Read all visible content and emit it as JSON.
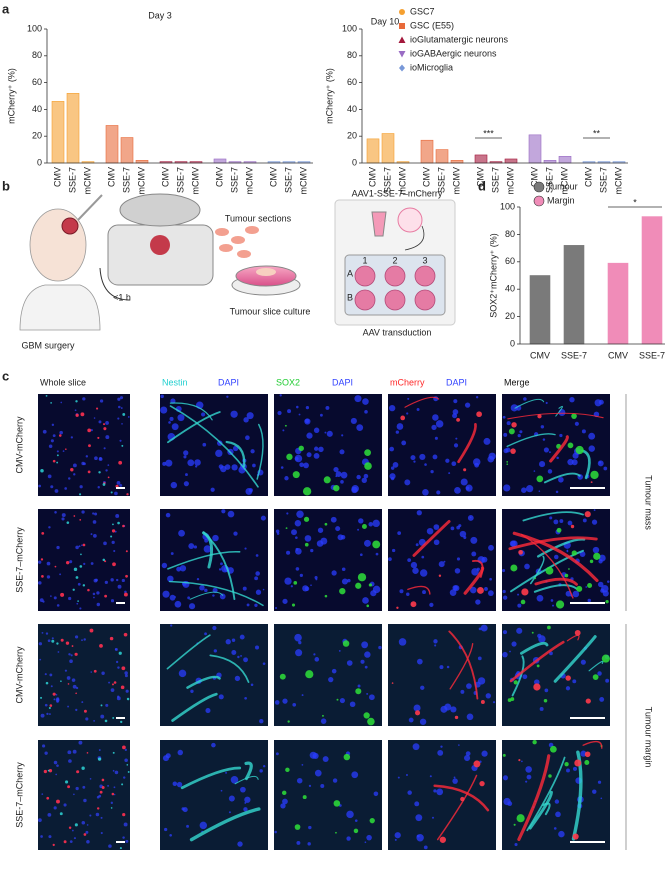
{
  "panel_labels": [
    "a",
    "b",
    "c",
    "d"
  ],
  "chart_data": [
    {
      "type": "bar",
      "title": "Day 3",
      "y_label": "mCherry⁺ (%)",
      "categories": [
        "CMV",
        "SSE-7",
        "mCMV"
      ],
      "series": [
        {
          "color": "#f5a030",
          "values": [
            46,
            52,
            1
          ]
        },
        {
          "color": "#e86a3a",
          "values": [
            28,
            19,
            2
          ]
        },
        {
          "color": "#a3183c",
          "values": [
            1,
            1,
            1
          ]
        },
        {
          "color": "#9a6cc4",
          "values": [
            3,
            1,
            1
          ]
        },
        {
          "color": "#7898d8",
          "values": [
            1,
            1,
            1
          ]
        }
      ],
      "ylim": [
        0,
        100
      ],
      "yticks": [
        0,
        20,
        40,
        60,
        80,
        100
      ]
    },
    {
      "type": "bar",
      "title": "Day 10",
      "y_label": "mCherry⁺ (%)",
      "categories": [
        "CMV",
        "SSE-7",
        "mCMV"
      ],
      "series": [
        {
          "name": "GSC7",
          "color": "#f5a030",
          "values": [
            18,
            22,
            1
          ]
        },
        {
          "name": "GSC (E55)",
          "color": "#e86a3a",
          "values": [
            17,
            10,
            2
          ]
        },
        {
          "name": "ioGlutamatergic neurons",
          "color": "#a3183c",
          "values": [
            6,
            1,
            3
          ]
        },
        {
          "name": "ioGABAergic neurons",
          "color": "#9a6cc4",
          "values": [
            21,
            2,
            5
          ]
        },
        {
          "name": "ioMicroglia",
          "color": "#7898d8",
          "values": [
            1,
            1,
            1
          ]
        }
      ],
      "annotations": [
        "***",
        "**"
      ],
      "ylim": [
        0,
        100
      ],
      "yticks": [
        0,
        20,
        40,
        60,
        80,
        100
      ]
    },
    {
      "type": "bar",
      "y_label": "SOX2⁺mCherry⁺ (%)",
      "categories": [
        "CMV",
        "SSE-7"
      ],
      "series": [
        {
          "name": "Tumour",
          "color": "#7a7a7a",
          "values": [
            50,
            72
          ]
        },
        {
          "name": "Margin",
          "color": "#f08cb8",
          "values": [
            59,
            93
          ]
        }
      ],
      "annotations": [
        "*"
      ],
      "ylim": [
        0,
        100
      ],
      "yticks": [
        0,
        20,
        40,
        60,
        80,
        100
      ]
    }
  ],
  "workflow": {
    "surgery": "GBM surgery",
    "time": "<1 h",
    "sections": "Tumour sections",
    "culture": "Tumour slice culture",
    "vector": "AAV1-SSE-7–mCherry",
    "transduction": "AAV transduction",
    "plate_columns": [
      "1",
      "2",
      "3"
    ],
    "plate_rows": [
      "A",
      "B"
    ]
  },
  "micrographs": {
    "whole": "Whole slice",
    "stains": [
      [
        "Nestin",
        "DAPI"
      ],
      [
        "SOX2",
        "DAPI"
      ],
      [
        "mCherry",
        "DAPI"
      ],
      [
        "Merge"
      ]
    ],
    "rows": [
      "CMV-mCherry",
      "SSE-7–mCherry",
      "CMV-mCherry",
      "SSE-7–mCherry"
    ],
    "regions": [
      "Tumour mass",
      "Tumour margin"
    ]
  }
}
